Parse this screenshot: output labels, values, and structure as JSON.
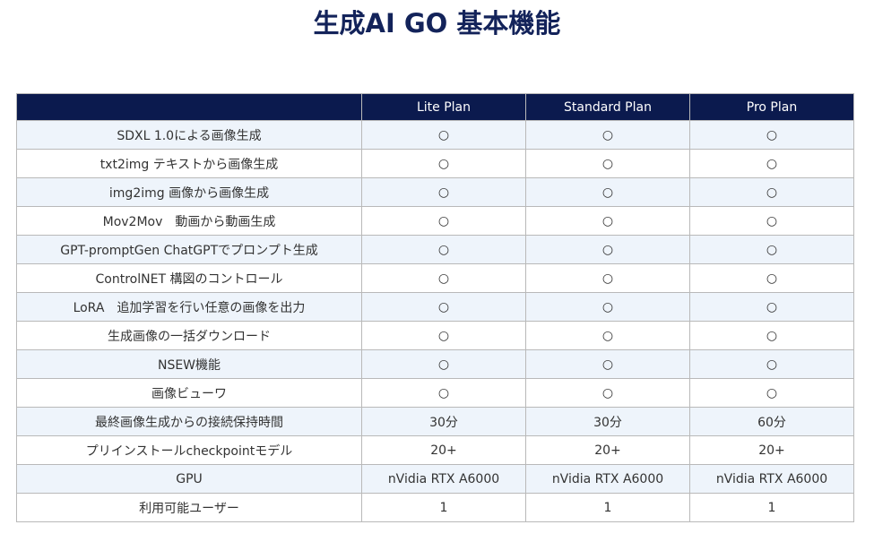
{
  "title": "生成AI GO 基本機能",
  "columns": [
    "",
    "Lite Plan",
    "Standard Plan",
    "Pro Plan"
  ],
  "rows": [
    {
      "feature": "SDXL 1.0による画像生成",
      "lite": "○",
      "standard": "○",
      "pro": "○"
    },
    {
      "feature": "txt2img テキストから画像生成",
      "lite": "○",
      "standard": "○",
      "pro": "○"
    },
    {
      "feature": "img2img 画像から画像生成",
      "lite": "○",
      "standard": "○",
      "pro": "○"
    },
    {
      "feature": "Mov2Mov　動画から動画生成",
      "lite": "○",
      "standard": "○",
      "pro": "○"
    },
    {
      "feature": "GPT-promptGen ChatGPTでプロンプト生成",
      "lite": "○",
      "standard": "○",
      "pro": "○"
    },
    {
      "feature": "ControlNET 構図のコントロール",
      "lite": "○",
      "standard": "○",
      "pro": "○"
    },
    {
      "feature": "LoRA　追加学習を行い任意の画像を出力",
      "lite": "○",
      "standard": "○",
      "pro": "○"
    },
    {
      "feature": "生成画像の一括ダウンロード",
      "lite": "○",
      "standard": "○",
      "pro": "○"
    },
    {
      "feature": "NSEW機能",
      "lite": "○",
      "standard": "○",
      "pro": "○"
    },
    {
      "feature": "画像ビューワ",
      "lite": "○",
      "standard": "○",
      "pro": "○"
    },
    {
      "feature": "最終画像生成からの接続保持時間",
      "lite": "30分",
      "standard": "30分",
      "pro": "60分"
    },
    {
      "feature": "プリインストールcheckpointモデル",
      "lite": "20+",
      "standard": "20+",
      "pro": "20+"
    },
    {
      "feature": "GPU",
      "lite": "nVidia RTX A6000",
      "standard": "nVidia RTX A6000",
      "pro": "nVidia RTX A6000"
    },
    {
      "feature": "利用可能ユーザー",
      "lite": "1",
      "standard": "1",
      "pro": "1"
    }
  ],
  "colors": {
    "header_bg": "#0b1a4e",
    "title": "#13235a",
    "row_alt_bg": "#eef4fb",
    "border": "#b9b9b9"
  }
}
